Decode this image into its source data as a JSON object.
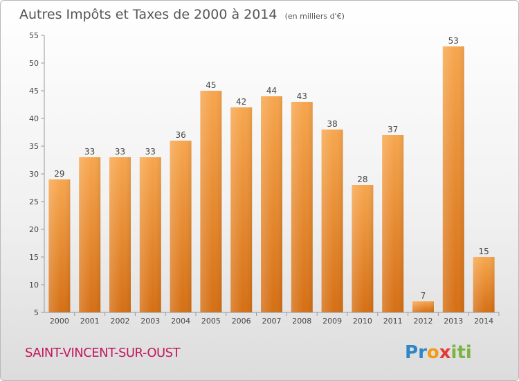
{
  "chart_data": {
    "type": "bar",
    "title": "Autres Impôts et Taxes de 2000 à 2014",
    "unit": "(en milliers d'€)",
    "categories": [
      "2000",
      "2001",
      "2002",
      "2003",
      "2004",
      "2005",
      "2006",
      "2007",
      "2008",
      "2009",
      "2010",
      "2011",
      "2012",
      "2013",
      "2014"
    ],
    "values": [
      29,
      33,
      33,
      33,
      36,
      45,
      42,
      44,
      43,
      38,
      28,
      37,
      7,
      53,
      15
    ],
    "yticks": [
      5,
      10,
      15,
      20,
      25,
      30,
      35,
      40,
      45,
      50,
      55
    ],
    "ylim": [
      5,
      55
    ],
    "grid": false,
    "bar_color": "#f0923a"
  },
  "commune": "SAINT-VINCENT-SUR-OUST",
  "logo": {
    "letters": [
      "P",
      "r",
      "o",
      "x",
      "i",
      "t",
      "i"
    ],
    "colors": [
      "#2e86c8",
      "#2e86c8",
      "#f39c12",
      "#e53935",
      "#7cb342",
      "#7cb342",
      "#7cb342"
    ]
  }
}
